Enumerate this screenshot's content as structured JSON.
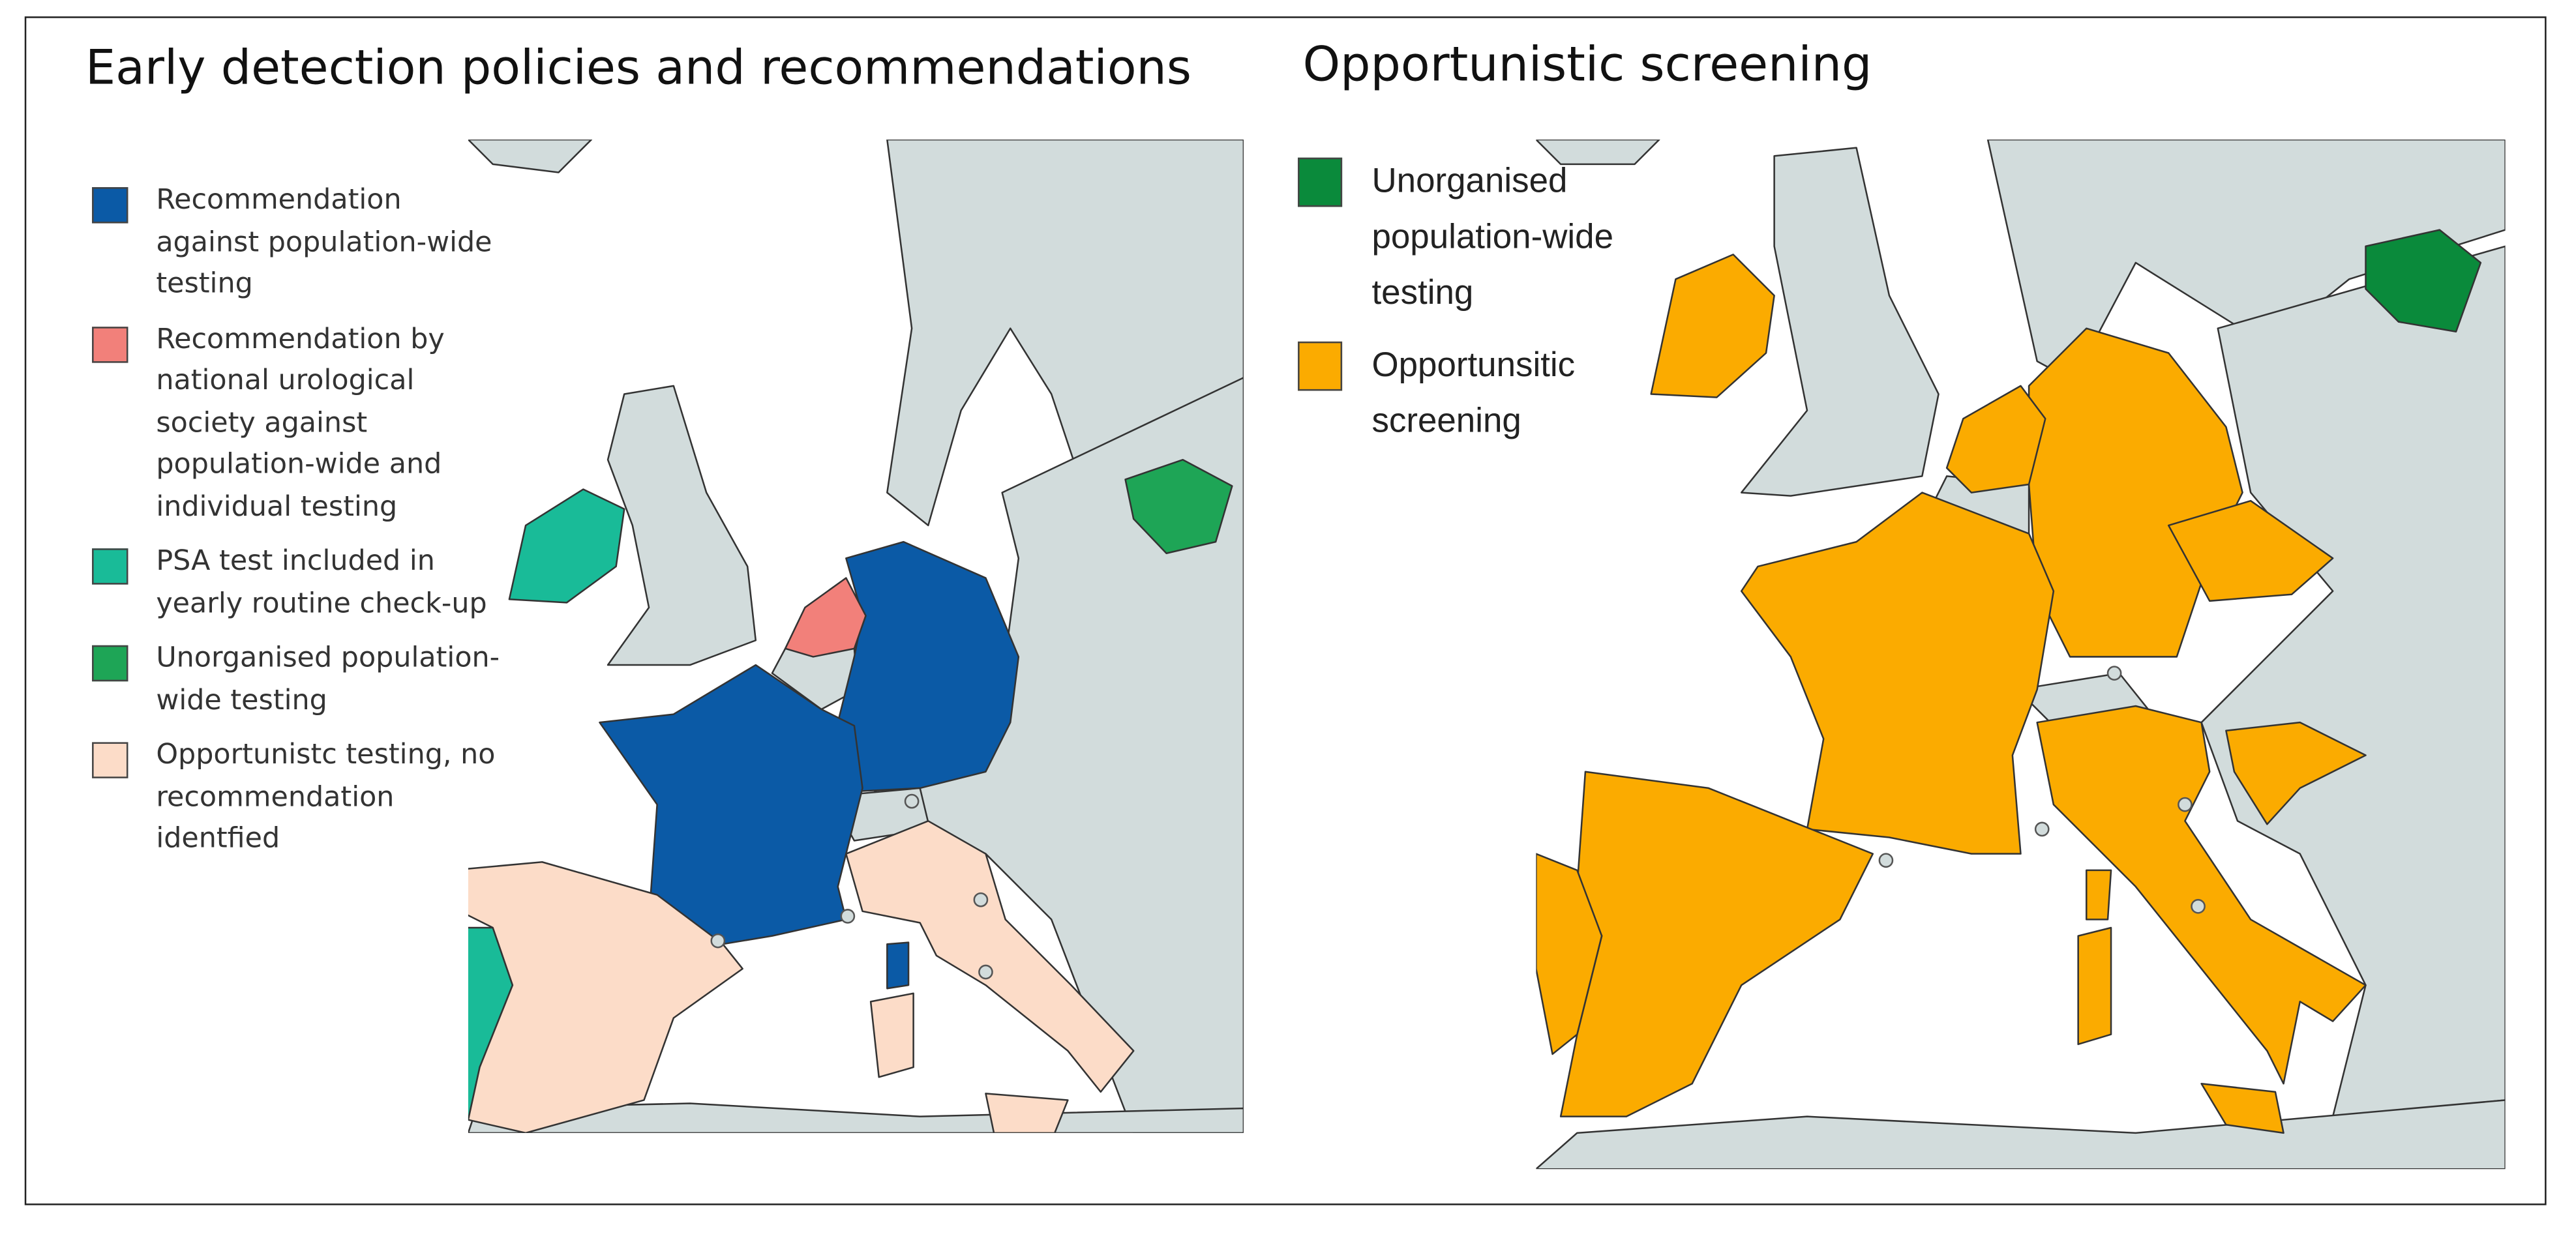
{
  "panels": [
    {
      "title": "Early detection policies and recommendations",
      "legend": [
        {
          "label": "Recommendation against population-wide testing",
          "color": "#0b5aa6"
        },
        {
          "label": "Recommendation by national urological society against population-wide and individual testing",
          "color": "#f2807a"
        },
        {
          "label": "PSA test included in yearly routine check-up",
          "color": "#19bb98"
        },
        {
          "label": "Unorganised population-wide testing",
          "color": "#1ea556"
        },
        {
          "label": "Opportunistc testing, no recommendation identfied",
          "color": "#fcdcc8"
        }
      ]
    },
    {
      "title": "Opportunistic screening",
      "legend": [
        {
          "label": "Unorganised population-wide testing",
          "color": "#0a8a3b"
        },
        {
          "label": "Opportunsitic screening",
          "color": "#fbab00"
        }
      ]
    }
  ]
}
